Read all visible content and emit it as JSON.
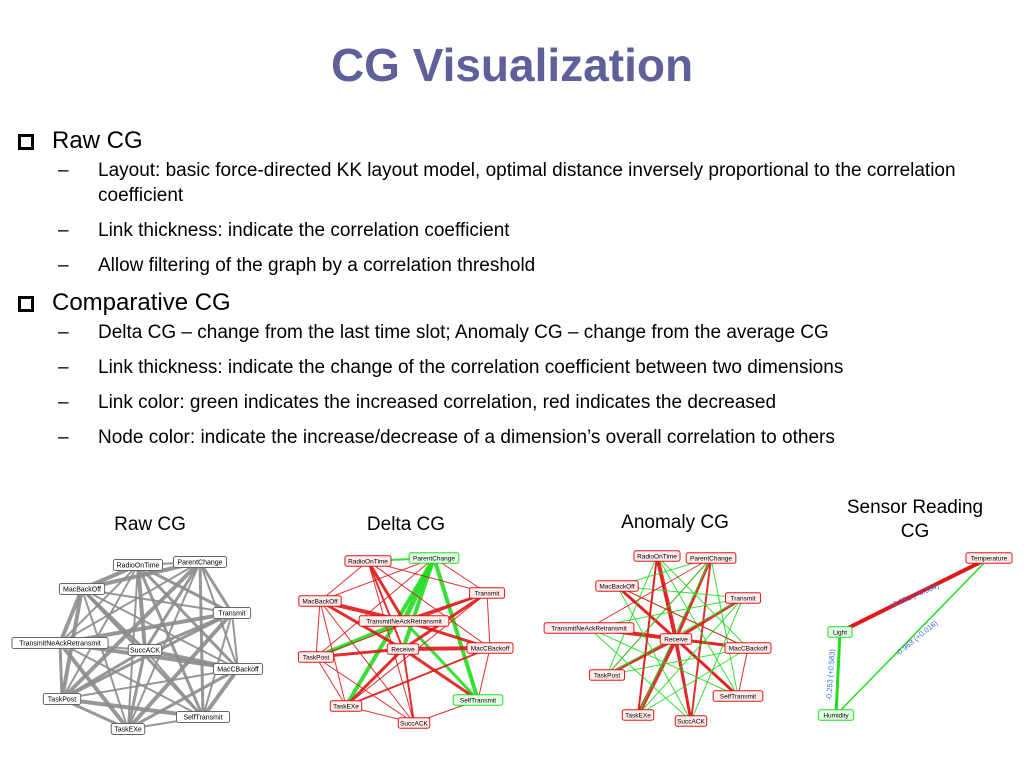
{
  "title": "CG Visualization",
  "sections": [
    {
      "label": "Raw CG",
      "items": [
        "Layout: basic force-directed KK layout model, optimal distance inversely proportional to the correlation coefficient",
        "Link thickness: indicate the correlation coefficient",
        "Allow filtering of the graph by a correlation threshold"
      ]
    },
    {
      "label": "Comparative CG",
      "items": [
        "Delta CG – change from the last time slot; Anomaly CG – change from the average CG",
        "Link thickness: indicate the change of the correlation coefficient between two dimensions",
        "Link color: green indicates the increased correlation, red indicates the decreased",
        "Node color: indicate the increase/decrease of a dimension’s overall correlation to others"
      ]
    }
  ],
  "captions": {
    "raw": "Raw CG",
    "delta": "Delta CG",
    "anomaly": "Anomaly CG",
    "sensor_line1": "Sensor Reading",
    "sensor_line2": "CG"
  },
  "colors": {
    "title": "#5f5f9a",
    "raw_edge": "#8c8c8c",
    "increase": "#22dd22",
    "decrease": "#e01818",
    "sensor_label": "#3a6fd8"
  },
  "graphs": {
    "raw": {
      "nodes": [
        "RadioOnTime",
        "ParentChange",
        "MacBackOff",
        "Transmit",
        "TransmitNeAckRetransmit",
        "SuccACK",
        "MacCBackoff",
        "TaskPost",
        "SelfTransmit",
        "TaskEXe"
      ]
    },
    "delta": {
      "nodes": [
        "RadioOnTime",
        "ParentChange",
        "MacBackOff",
        "Transmit",
        "TransmitNeAckRetransmit",
        "Receive",
        "MacCBackoff",
        "TaskPost",
        "TaskEXe",
        "SelfTransmit",
        "SuccACK"
      ]
    },
    "anomaly": {
      "nodes": [
        "RadioOnTime",
        "ParentChange",
        "MacBackOff",
        "Transmit",
        "TransmitNeAckRetransmit",
        "Receive",
        "MacCBackoff",
        "TaskPost",
        "SelfTransmit",
        "TaskEXe",
        "SuccACK"
      ]
    },
    "sensor": {
      "nodes": [
        "Temperature",
        "Light",
        "Humidity"
      ],
      "edge_labels": [
        "+0.251 (+0.964)",
        "-0.963 (+0.016)",
        "-0.253 (+0.583)"
      ]
    }
  }
}
